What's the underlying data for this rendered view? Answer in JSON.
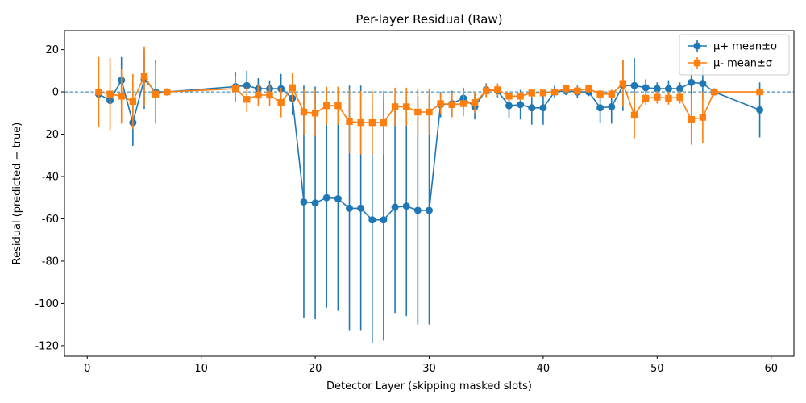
{
  "chart_data": {
    "type": "line",
    "title": "Per-layer Residual (Raw)",
    "xlabel": "Detector Layer (skipping masked slots)",
    "ylabel": "Residual (predicted − true)",
    "xlim": [
      -2,
      62
    ],
    "ylim": [
      -125,
      29
    ],
    "xticks": [
      0,
      10,
      20,
      30,
      40,
      50,
      60
    ],
    "yticks": [
      -120,
      -100,
      -80,
      -60,
      -40,
      -20,
      0,
      20
    ],
    "reference_line": {
      "y": 0,
      "style": "dashed",
      "color": "#1f77b4"
    },
    "legend_position": "top-right",
    "grid": false,
    "series": [
      {
        "name": "μ+ mean±σ",
        "color": "#1f77b4",
        "marker": "circle",
        "x": [
          1,
          2,
          3,
          4,
          5,
          6,
          7,
          13,
          14,
          15,
          16,
          17,
          18,
          19,
          20,
          21,
          22,
          23,
          24,
          25,
          26,
          27,
          28,
          29,
          30,
          31,
          32,
          33,
          34,
          35,
          36,
          37,
          38,
          39,
          40,
          41,
          42,
          43,
          44,
          45,
          46,
          47,
          48,
          49,
          50,
          51,
          52,
          53,
          54,
          55,
          59
        ],
        "y": [
          -1,
          -4,
          5.5,
          -14.5,
          6,
          0,
          0,
          2.5,
          3,
          1.5,
          1.5,
          1.5,
          -3,
          -52,
          -52.5,
          -50,
          -50.5,
          -55,
          -55,
          -60.5,
          -60.5,
          -54.5,
          -54,
          -56,
          -56,
          -6,
          -5.5,
          -3,
          -7,
          1,
          0.5,
          -6.5,
          -6,
          -7.5,
          -7.5,
          0,
          0.5,
          0,
          0,
          -7.5,
          -7,
          3,
          3,
          2,
          1.5,
          1.5,
          1.5,
          4.5,
          4,
          0,
          -8.5
        ],
        "err": [
          1,
          1,
          11,
          11,
          14,
          15,
          1,
          7,
          7,
          5,
          4,
          7,
          8,
          55,
          55,
          52,
          53,
          58,
          58,
          58,
          57,
          50,
          52,
          54,
          54,
          6,
          6,
          5,
          6,
          3,
          3,
          6,
          7,
          8,
          8,
          3,
          2,
          3,
          2,
          7,
          8,
          12,
          13,
          4,
          3,
          4,
          3,
          8,
          8,
          1,
          13
        ]
      },
      {
        "name": "μ- mean±σ",
        "color": "#ff7f0e",
        "marker": "square",
        "x": [
          1,
          2,
          3,
          4,
          5,
          6,
          7,
          13,
          14,
          15,
          16,
          17,
          18,
          19,
          20,
          21,
          22,
          23,
          24,
          25,
          26,
          27,
          28,
          29,
          30,
          31,
          32,
          33,
          34,
          35,
          36,
          37,
          38,
          39,
          40,
          41,
          42,
          43,
          44,
          45,
          46,
          47,
          48,
          49,
          50,
          51,
          52,
          53,
          54,
          55,
          59
        ],
        "y": [
          0,
          -1,
          -2,
          -4.5,
          7.5,
          -1,
          0,
          1.5,
          -3.5,
          -1.5,
          -1.5,
          -5,
          2,
          -9.5,
          -10,
          -6.5,
          -6.5,
          -14,
          -14.5,
          -14.5,
          -14.5,
          -7,
          -7,
          -9.5,
          -9.5,
          -5.5,
          -6,
          -5.5,
          -5,
          0.5,
          1,
          -2,
          -2,
          -0.5,
          -0.5,
          0,
          1.5,
          0.5,
          1.5,
          -1,
          -1,
          4,
          -11,
          -3,
          -2.5,
          -3,
          -2.5,
          -13,
          -12,
          0,
          0
        ],
        "err": [
          16.5,
          17,
          13,
          13,
          14,
          14,
          1,
          6,
          6,
          5,
          5,
          7,
          7,
          11,
          11,
          9,
          9,
          15,
          15,
          15,
          15,
          9,
          9,
          11,
          11,
          5,
          6,
          6,
          5,
          3,
          3,
          2,
          2,
          2,
          1,
          1,
          2,
          2,
          2,
          2,
          2,
          11,
          11,
          3,
          3,
          3,
          3,
          12,
          12,
          1,
          1
        ]
      }
    ]
  }
}
